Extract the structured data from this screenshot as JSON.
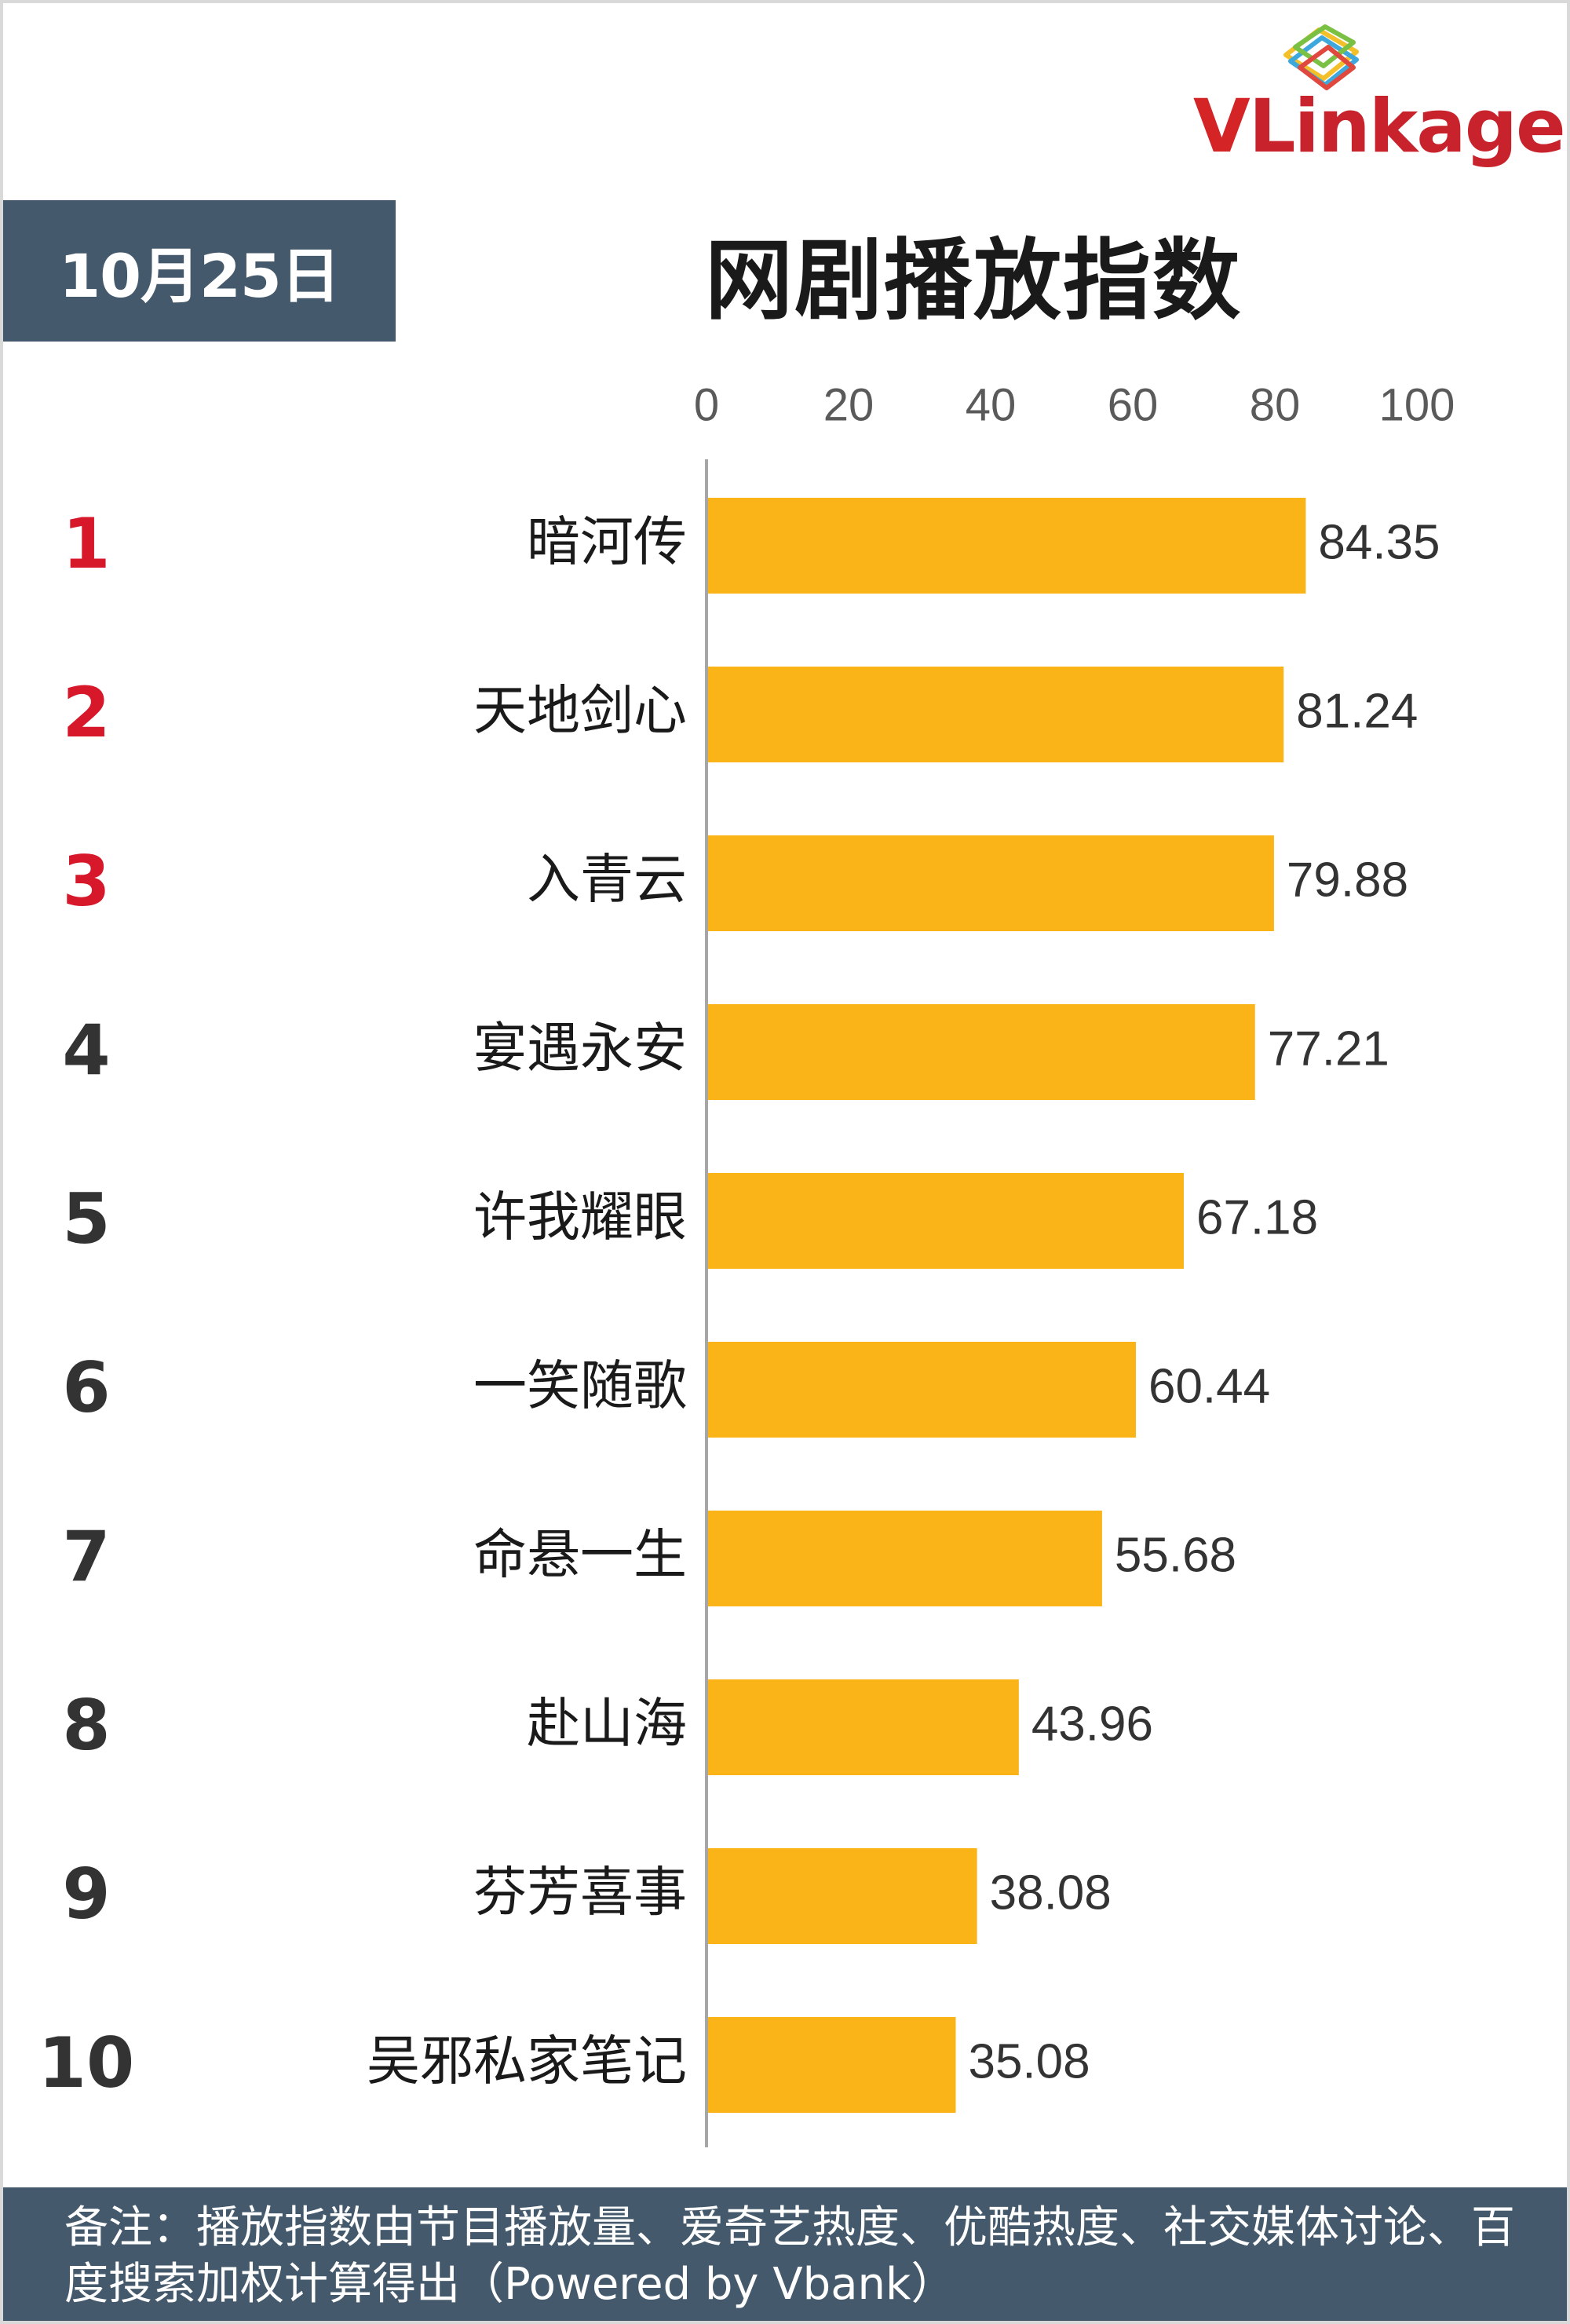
{
  "date": "10月25日",
  "logo": {
    "brand_prefix": "V",
    "brand_rest": "Linkage",
    "icon": "stacked-frames-icon"
  },
  "footnote": "备注：播放指数由节目播放量、爱奇艺热度、优酷热度、社交媒体讨论、百度搜索加权计算得出（Powered by Vbank）",
  "colors": {
    "bar": "#fbb417",
    "header_bg": "#44596b",
    "rank_top": "#d7182a",
    "rank_other": "#333333",
    "axis": "#a6a6a6"
  },
  "chart_data": {
    "type": "bar",
    "orientation": "horizontal",
    "title": "网剧播放指数",
    "xlim": [
      0,
      100
    ],
    "ticks": [
      0,
      20,
      40,
      60,
      80,
      100
    ],
    "ranks": [
      "1",
      "2",
      "3",
      "4",
      "5",
      "6",
      "7",
      "8",
      "9",
      "10"
    ],
    "categories": [
      "暗河传",
      "天地剑心",
      "入青云",
      "宴遇永安",
      "许我耀眼",
      "一笑随歌",
      "命悬一生",
      "赴山海",
      "芬芳喜事",
      "吴邪私家笔记"
    ],
    "values": [
      84.35,
      81.24,
      79.88,
      77.21,
      67.18,
      60.44,
      55.68,
      43.96,
      38.08,
      35.08
    ],
    "value_labels": [
      "84.35",
      "81.24",
      "79.88",
      "77.21",
      "67.18",
      "60.44",
      "55.68",
      "43.96",
      "38.08",
      "35.08"
    ],
    "axis_position": "top",
    "grid": false,
    "legend": "none"
  }
}
